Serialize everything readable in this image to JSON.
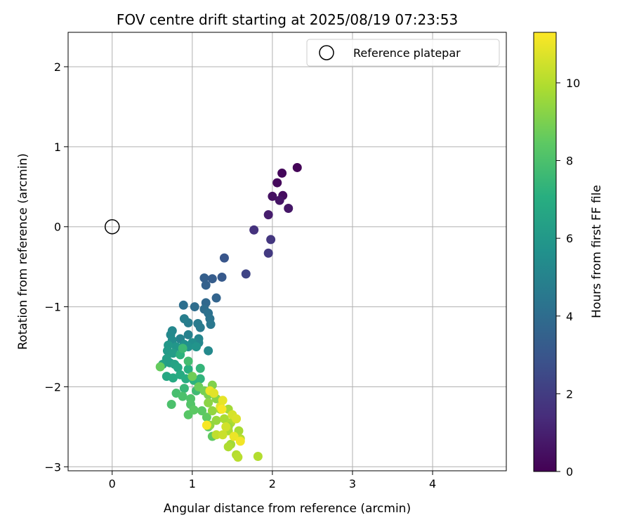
{
  "chart_data": {
    "type": "scatter",
    "title": "FOV centre drift starting at 2025/08/19 07:23:53",
    "xlabel": "Angular distance from reference (arcmin)",
    "ylabel": "Rotation from reference (arcmin)",
    "xlim": [
      -0.55,
      4.92
    ],
    "ylim": [
      -3.05,
      2.43
    ],
    "xticks": [
      0,
      1,
      2,
      3,
      4
    ],
    "yticks": [
      -3,
      -2,
      -1,
      0,
      1,
      2
    ],
    "grid": true,
    "legend": {
      "position": "top-right",
      "entries": [
        "Reference platepar"
      ]
    },
    "reference_point": {
      "name": "Reference platepar",
      "x": 0,
      "y": 0
    },
    "colorbar": {
      "label": "Hours from first FF file",
      "colormap": "viridis",
      "range": [
        0,
        11.3
      ],
      "ticks": [
        0,
        2,
        4,
        6,
        8,
        10
      ]
    },
    "points": [
      {
        "x": 2.31,
        "y": 0.74,
        "h": 0.1
      },
      {
        "x": 2.12,
        "y": 0.67,
        "h": 0.2
      },
      {
        "x": 2.06,
        "y": 0.55,
        "h": 0.3
      },
      {
        "x": 2.13,
        "y": 0.39,
        "h": 0.4
      },
      {
        "x": 2.0,
        "y": 0.38,
        "h": 0.5
      },
      {
        "x": 2.09,
        "y": 0.33,
        "h": 0.6
      },
      {
        "x": 2.2,
        "y": 0.23,
        "h": 0.7
      },
      {
        "x": 1.95,
        "y": 0.15,
        "h": 0.9
      },
      {
        "x": 1.77,
        "y": -0.04,
        "h": 1.6
      },
      {
        "x": 1.98,
        "y": -0.16,
        "h": 1.8
      },
      {
        "x": 1.95,
        "y": -0.33,
        "h": 1.9
      },
      {
        "x": 1.67,
        "y": -0.59,
        "h": 2.3
      },
      {
        "x": 1.4,
        "y": -0.39,
        "h": 3.0
      },
      {
        "x": 1.37,
        "y": -0.63,
        "h": 3.2
      },
      {
        "x": 1.15,
        "y": -0.64,
        "h": 3.4
      },
      {
        "x": 1.25,
        "y": -0.65,
        "h": 3.3
      },
      {
        "x": 1.17,
        "y": -0.73,
        "h": 3.5
      },
      {
        "x": 1.3,
        "y": -0.89,
        "h": 3.6
      },
      {
        "x": 1.17,
        "y": -0.95,
        "h": 3.8
      },
      {
        "x": 1.03,
        "y": -1.0,
        "h": 4.0
      },
      {
        "x": 0.89,
        "y": -0.98,
        "h": 4.1
      },
      {
        "x": 1.15,
        "y": -1.03,
        "h": 4.0
      },
      {
        "x": 1.2,
        "y": -1.08,
        "h": 4.2
      },
      {
        "x": 1.22,
        "y": -1.15,
        "h": 4.3
      },
      {
        "x": 1.23,
        "y": -1.22,
        "h": 4.5
      },
      {
        "x": 1.07,
        "y": -1.21,
        "h": 4.6
      },
      {
        "x": 0.95,
        "y": -1.2,
        "h": 4.7
      },
      {
        "x": 0.9,
        "y": -1.15,
        "h": 4.8
      },
      {
        "x": 1.1,
        "y": -1.26,
        "h": 4.6
      },
      {
        "x": 0.95,
        "y": -1.35,
        "h": 4.9
      },
      {
        "x": 0.85,
        "y": -1.4,
        "h": 5.0
      },
      {
        "x": 0.75,
        "y": -1.3,
        "h": 5.2
      },
      {
        "x": 0.73,
        "y": -1.35,
        "h": 5.3
      },
      {
        "x": 0.75,
        "y": -1.42,
        "h": 5.4
      },
      {
        "x": 1.08,
        "y": -1.4,
        "h": 5.1
      },
      {
        "x": 1.08,
        "y": -1.45,
        "h": 5.2
      },
      {
        "x": 1.2,
        "y": -1.55,
        "h": 5.3
      },
      {
        "x": 1.0,
        "y": -1.45,
        "h": 5.5
      },
      {
        "x": 0.9,
        "y": -1.47,
        "h": 5.6
      },
      {
        "x": 0.95,
        "y": -1.5,
        "h": 5.7
      },
      {
        "x": 1.05,
        "y": -1.5,
        "h": 5.8
      },
      {
        "x": 0.8,
        "y": -1.5,
        "h": 5.9
      },
      {
        "x": 0.7,
        "y": -1.48,
        "h": 6.0
      },
      {
        "x": 0.69,
        "y": -1.55,
        "h": 6.1
      },
      {
        "x": 0.76,
        "y": -1.58,
        "h": 6.2
      },
      {
        "x": 0.68,
        "y": -1.65,
        "h": 6.3
      },
      {
        "x": 0.63,
        "y": -1.72,
        "h": 6.4
      },
      {
        "x": 0.72,
        "y": -1.7,
        "h": 6.3
      },
      {
        "x": 0.78,
        "y": -1.72,
        "h": 6.5
      },
      {
        "x": 0.82,
        "y": -1.76,
        "h": 6.6
      },
      {
        "x": 0.68,
        "y": -1.87,
        "h": 6.7
      },
      {
        "x": 0.76,
        "y": -1.89,
        "h": 6.8
      },
      {
        "x": 0.85,
        "y": -1.85,
        "h": 6.9
      },
      {
        "x": 0.92,
        "y": -1.9,
        "h": 7.0
      },
      {
        "x": 1.02,
        "y": -1.92,
        "h": 7.2
      },
      {
        "x": 1.1,
        "y": -1.9,
        "h": 7.3
      },
      {
        "x": 0.95,
        "y": -1.78,
        "h": 7.1
      },
      {
        "x": 0.85,
        "y": -1.6,
        "h": 7.2
      },
      {
        "x": 0.88,
        "y": -1.52,
        "h": 7.6
      },
      {
        "x": 0.95,
        "y": -1.68,
        "h": 7.8
      },
      {
        "x": 1.1,
        "y": -1.77,
        "h": 7.4
      },
      {
        "x": 0.9,
        "y": -2.02,
        "h": 7.5
      },
      {
        "x": 1.05,
        "y": -2.05,
        "h": 7.7
      },
      {
        "x": 0.8,
        "y": -2.08,
        "h": 7.9
      },
      {
        "x": 0.88,
        "y": -2.12,
        "h": 8.0
      },
      {
        "x": 0.98,
        "y": -2.15,
        "h": 8.1
      },
      {
        "x": 0.74,
        "y": -2.22,
        "h": 8.0
      },
      {
        "x": 0.98,
        "y": -2.22,
        "h": 8.2
      },
      {
        "x": 0.95,
        "y": -2.35,
        "h": 8.3
      },
      {
        "x": 1.02,
        "y": -2.29,
        "h": 8.4
      },
      {
        "x": 1.12,
        "y": -2.3,
        "h": 8.4
      },
      {
        "x": 1.18,
        "y": -2.38,
        "h": 8.5
      },
      {
        "x": 1.2,
        "y": -2.5,
        "h": 8.4
      },
      {
        "x": 1.25,
        "y": -2.62,
        "h": 8.5
      },
      {
        "x": 0.6,
        "y": -1.75,
        "h": 8.6
      },
      {
        "x": 1.0,
        "y": -1.87,
        "h": 8.8
      },
      {
        "x": 1.08,
        "y": -2.0,
        "h": 8.7
      },
      {
        "x": 1.15,
        "y": -2.05,
        "h": 8.9
      },
      {
        "x": 1.2,
        "y": -2.1,
        "h": 9.0
      },
      {
        "x": 1.25,
        "y": -1.98,
        "h": 9.1
      },
      {
        "x": 1.3,
        "y": -2.15,
        "h": 9.2
      },
      {
        "x": 1.2,
        "y": -2.2,
        "h": 9.3
      },
      {
        "x": 1.25,
        "y": -2.3,
        "h": 9.4
      },
      {
        "x": 1.3,
        "y": -2.42,
        "h": 9.5
      },
      {
        "x": 1.22,
        "y": -2.48,
        "h": 9.4
      },
      {
        "x": 1.35,
        "y": -2.28,
        "h": 9.6
      },
      {
        "x": 1.45,
        "y": -2.28,
        "h": 9.7
      },
      {
        "x": 1.4,
        "y": -2.4,
        "h": 9.8
      },
      {
        "x": 1.48,
        "y": -2.45,
        "h": 9.9
      },
      {
        "x": 1.45,
        "y": -2.5,
        "h": 9.6
      },
      {
        "x": 1.45,
        "y": -2.55,
        "h": 9.9
      },
      {
        "x": 1.58,
        "y": -2.55,
        "h": 9.8
      },
      {
        "x": 1.6,
        "y": -2.65,
        "h": 10.0
      },
      {
        "x": 1.48,
        "y": -2.72,
        "h": 9.7
      },
      {
        "x": 1.45,
        "y": -2.75,
        "h": 9.9
      },
      {
        "x": 1.55,
        "y": -2.85,
        "h": 10.0
      },
      {
        "x": 1.57,
        "y": -2.88,
        "h": 10.1
      },
      {
        "x": 1.82,
        "y": -2.87,
        "h": 10.0
      },
      {
        "x": 1.3,
        "y": -2.6,
        "h": 10.2
      },
      {
        "x": 1.38,
        "y": -2.6,
        "h": 10.4
      },
      {
        "x": 1.42,
        "y": -2.5,
        "h": 10.5
      },
      {
        "x": 1.5,
        "y": -2.35,
        "h": 10.6
      },
      {
        "x": 1.55,
        "y": -2.4,
        "h": 10.7
      },
      {
        "x": 1.35,
        "y": -2.25,
        "h": 10.8
      },
      {
        "x": 1.38,
        "y": -2.17,
        "h": 10.9
      },
      {
        "x": 1.52,
        "y": -2.62,
        "h": 11.0
      },
      {
        "x": 1.6,
        "y": -2.68,
        "h": 11.1
      },
      {
        "x": 1.18,
        "y": -2.48,
        "h": 11.2
      },
      {
        "x": 1.22,
        "y": -2.05,
        "h": 11.0
      },
      {
        "x": 1.27,
        "y": -2.08,
        "h": 10.8
      },
      {
        "x": 1.37,
        "y": -2.28,
        "h": 11.2
      }
    ]
  }
}
